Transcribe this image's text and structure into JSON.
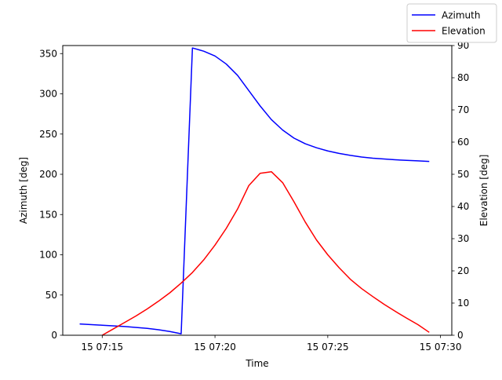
{
  "chart_data": {
    "type": "line",
    "xlabel": "Time",
    "ylabel_left": "Azimuth [deg]",
    "ylabel_right": "Elevation [deg]",
    "x_unit": "minutes past 07:00 on day 15",
    "xlim": [
      13.25,
      30.5
    ],
    "ylim_left": [
      0,
      360
    ],
    "ylim_right": [
      0,
      90
    ],
    "x_ticks": [
      {
        "value": 15,
        "label": "15 07:15"
      },
      {
        "value": 20,
        "label": "15 07:20"
      },
      {
        "value": 25,
        "label": "15 07:25"
      },
      {
        "value": 30,
        "label": "15 07:30"
      }
    ],
    "yticks_left": [
      0,
      50,
      100,
      150,
      200,
      250,
      300,
      350
    ],
    "yticks_right": [
      0,
      10,
      20,
      30,
      40,
      50,
      60,
      70,
      80,
      90
    ],
    "legend_position": "top-right",
    "series": [
      {
        "name": "Azimuth",
        "axis": "left",
        "color": "#0000ff",
        "x": [
          14.0,
          15.0,
          16.0,
          17.0,
          17.5,
          18.0,
          18.5,
          19.0,
          19.5,
          20.0,
          20.5,
          21.0,
          21.5,
          22.0,
          22.5,
          23.0,
          23.5,
          24.0,
          24.5,
          25.0,
          25.5,
          26.0,
          26.5,
          27.0,
          27.5,
          28.0,
          28.5,
          29.0,
          29.5
        ],
        "values": [
          14,
          12.5,
          10.8,
          8.5,
          6.8,
          4.6,
          1.8,
          357,
          353,
          347,
          337,
          323,
          304,
          285,
          268,
          255,
          245,
          238,
          233,
          229,
          226,
          223.5,
          221.5,
          220,
          219,
          218,
          217.3,
          216.7,
          216
        ]
      },
      {
        "name": "Elevation",
        "axis": "right",
        "color": "#ff0000",
        "x": [
          15.0,
          15.5,
          16.0,
          16.5,
          17.0,
          17.5,
          18.0,
          18.5,
          19.0,
          19.5,
          20.0,
          20.5,
          21.0,
          21.5,
          22.0,
          22.5,
          23.0,
          23.5,
          24.0,
          24.5,
          25.0,
          25.5,
          26.0,
          26.5,
          27.0,
          27.5,
          28.0,
          28.5,
          29.0,
          29.5
        ],
        "values": [
          0,
          2,
          4,
          6,
          8.2,
          10.6,
          13.2,
          16.2,
          19.5,
          23.4,
          28,
          33.2,
          39.2,
          46.5,
          50.3,
          50.8,
          47.4,
          41.5,
          35.2,
          29.6,
          25,
          21,
          17.4,
          14.5,
          12,
          9.6,
          7.4,
          5.3,
          3.3,
          0.9
        ]
      }
    ]
  }
}
